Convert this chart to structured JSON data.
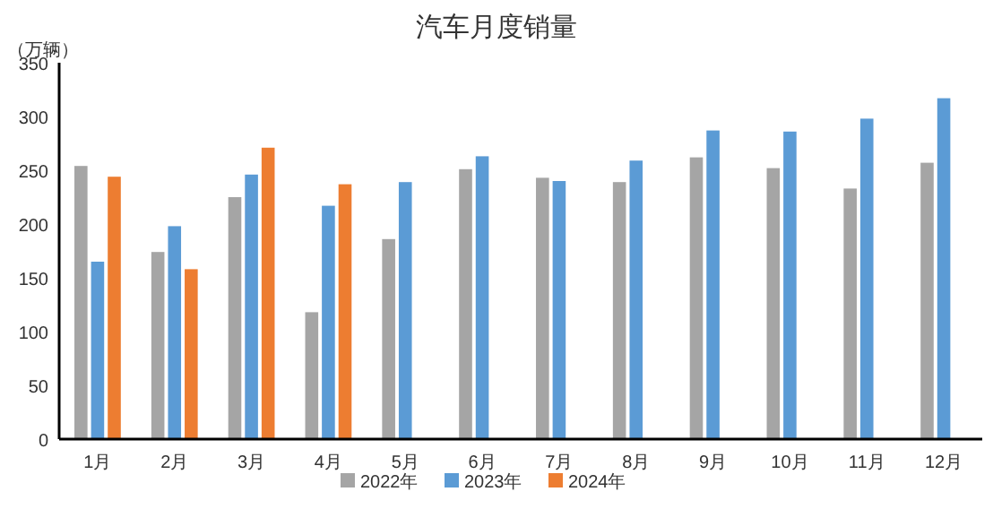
{
  "chart_data": {
    "type": "bar",
    "title": "汽车月度销量",
    "ylabel": "（万辆）",
    "categories": [
      "1月",
      "2月",
      "3月",
      "4月",
      "5月",
      "6月",
      "7月",
      "8月",
      "9月",
      "10月",
      "11月",
      "12月"
    ],
    "series": [
      {
        "name": "2022年",
        "color": "#a5a5a5",
        "values": [
          254,
          174,
          225,
          118,
          186,
          251,
          243,
          239,
          262,
          252,
          233,
          257
        ]
      },
      {
        "name": "2023年",
        "color": "#5b9bd5",
        "values": [
          165,
          198,
          246,
          217,
          239,
          263,
          240,
          259,
          287,
          286,
          298,
          317
        ]
      },
      {
        "name": "2024年",
        "color": "#ed7d31",
        "values": [
          244,
          158,
          271,
          237,
          null,
          null,
          null,
          null,
          null,
          null,
          null,
          null
        ]
      }
    ],
    "ylim": [
      0,
      350
    ],
    "yticks": [
      0,
      50,
      100,
      150,
      200,
      250,
      300,
      350
    ],
    "grid": false,
    "legend": "bottom"
  }
}
